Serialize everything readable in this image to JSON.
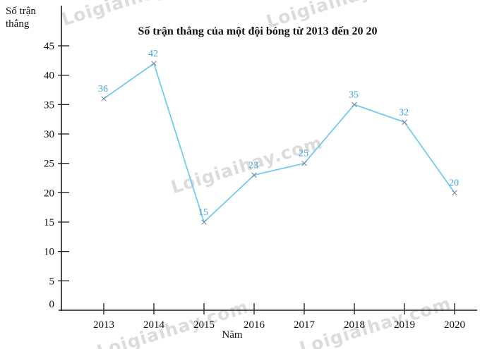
{
  "watermark": {
    "text": "Loigiaihay.com",
    "color": "#dcdcdc"
  },
  "chart_data": {
    "type": "line",
    "title": "Số trận thắng của một đội bóng từ 2013 đến 20 20",
    "ylabel": "Số trận thắng",
    "xlabel": "Năm",
    "categories": [
      "2013",
      "2014",
      "2015",
      "2016",
      "2017",
      "2018",
      "2019",
      "2020"
    ],
    "series": [
      {
        "name": "Số trận thắng",
        "values": [
          36,
          42,
          15,
          23,
          25,
          35,
          32,
          20
        ]
      }
    ],
    "point_labels": [
      "36",
      "42",
      "15",
      "23",
      "25",
      "35",
      "32",
      "20"
    ],
    "y_ticks": [
      0,
      5,
      10,
      15,
      20,
      25,
      30,
      35,
      40,
      45
    ],
    "ylim": [
      0,
      45
    ],
    "marker": "x",
    "grid": false,
    "legend": "none",
    "colors": {
      "line": "#6cc9f1",
      "point_label": "#3ba4de",
      "marker": "#8188a0",
      "axis": "#1c1c1c",
      "tick_text": "#111111"
    }
  }
}
